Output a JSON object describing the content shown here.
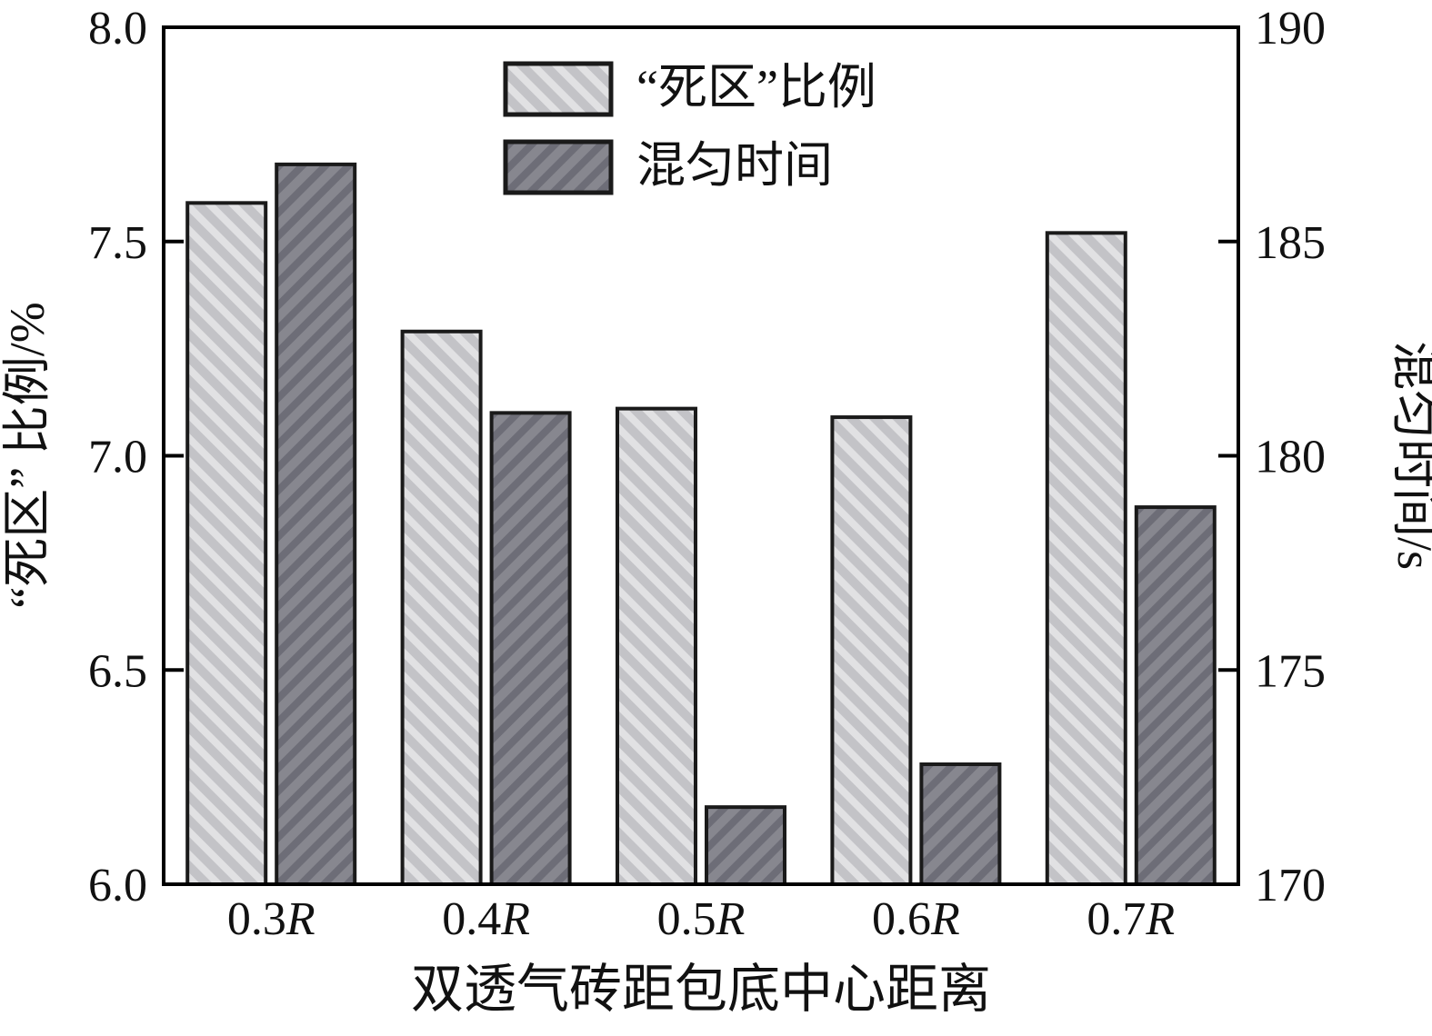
{
  "colors": {
    "light_bar_base": "#c3c3c7",
    "light_bar_stripe": "#e1e1e3",
    "dark_bar_base": "#87878f",
    "dark_bar_stripe": "#6d6d77",
    "bar_outline": "#1a1a1a",
    "axis_color": "#000000",
    "background": "#ffffff"
  },
  "chart_data": {
    "type": "bar",
    "title": "",
    "categories": [
      "0.3R",
      "0.4R",
      "0.5R",
      "0.6R",
      "0.7R"
    ],
    "series": [
      {
        "name": "“死区”比例",
        "axis": "left",
        "unit": "%",
        "values": [
          7.59,
          7.29,
          7.11,
          7.09,
          7.52
        ]
      },
      {
        "name": "混匀时间",
        "axis": "right",
        "unit": "s",
        "values": [
          186.8,
          181.0,
          171.8,
          172.8,
          178.8
        ]
      }
    ],
    "left_axis": {
      "label": "“死区” 比例/%",
      "min": 6.0,
      "max": 8.0,
      "ticks": [
        "6.0",
        "6.5",
        "7.0",
        "7.5",
        "8.0"
      ]
    },
    "right_axis": {
      "label": "混匀时间/s",
      "min": 170,
      "max": 190,
      "ticks": [
        "170",
        "175",
        "180",
        "185",
        "190"
      ]
    },
    "xlabel": "双透气砖距包底中心距离",
    "legend": {
      "position": "top-center",
      "entries": [
        "“死区”比例",
        "混匀时间"
      ]
    },
    "grid": false
  }
}
